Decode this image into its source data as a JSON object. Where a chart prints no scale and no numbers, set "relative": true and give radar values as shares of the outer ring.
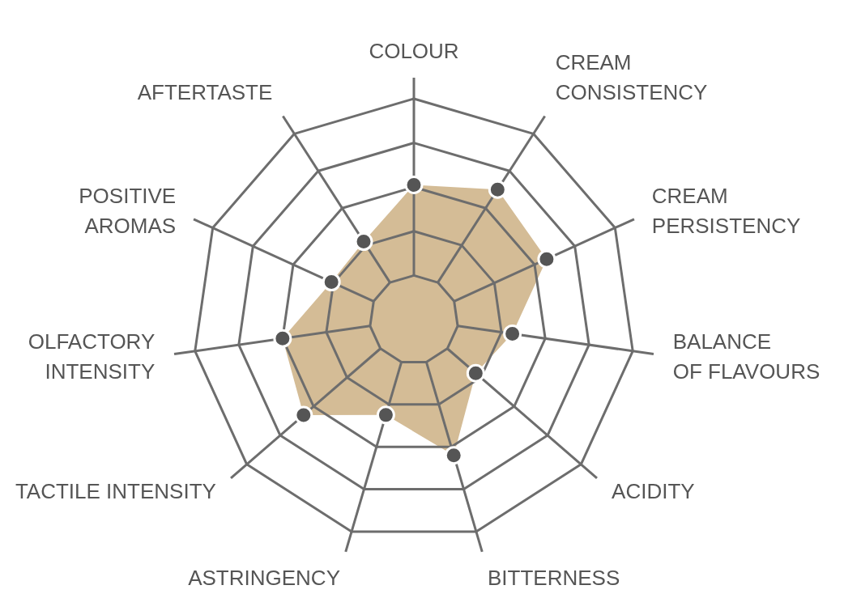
{
  "chart_data": {
    "type": "radar",
    "relative": true,
    "categories": [
      "COLOUR",
      "CREAM\nCONSISTENCY",
      "CREAM\nPERSISTENCY",
      "BALANCE\nOF FLAVOURS",
      "ACIDITY",
      "BITTERNESS",
      "ASTRINGENCY",
      "TACTILE INTENSITY",
      "OLFACTORY\nINTENSITY",
      "POSITIVE\nAROMAS",
      "AFTERTASTE"
    ],
    "series": [
      {
        "color": "#d4bc96",
        "values": [
          0.61,
          0.7,
          0.66,
          0.45,
          0.37,
          0.64,
          0.45,
          0.66,
          0.6,
          0.41,
          0.42
        ]
      }
    ],
    "grid": true,
    "marker": "circle"
  }
}
